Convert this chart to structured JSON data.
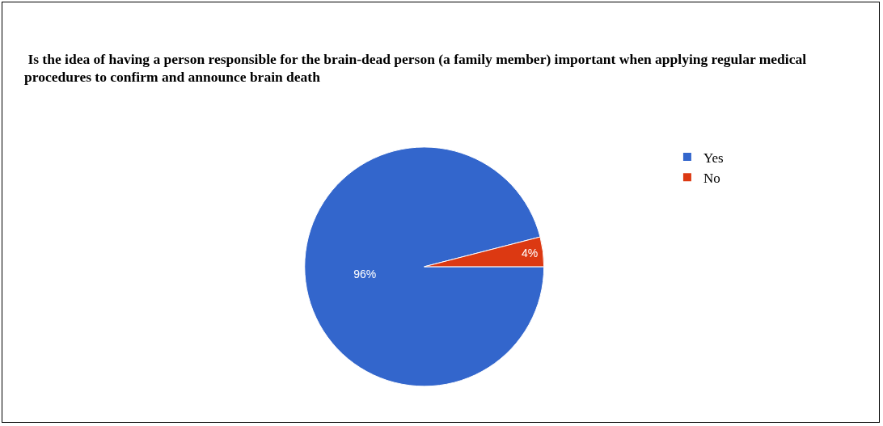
{
  "chart_data": {
    "type": "pie",
    "title": " Is the idea of having a person responsible for the brain-dead person (a family member) important when applying regular medical procedures to confirm and announce brain death",
    "categories": [
      "Yes",
      "No"
    ],
    "values": [
      96,
      4
    ],
    "colors": [
      "#3366cc",
      "#dc3912"
    ],
    "value_labels": [
      "96%",
      "4%"
    ],
    "legend": "top right"
  }
}
